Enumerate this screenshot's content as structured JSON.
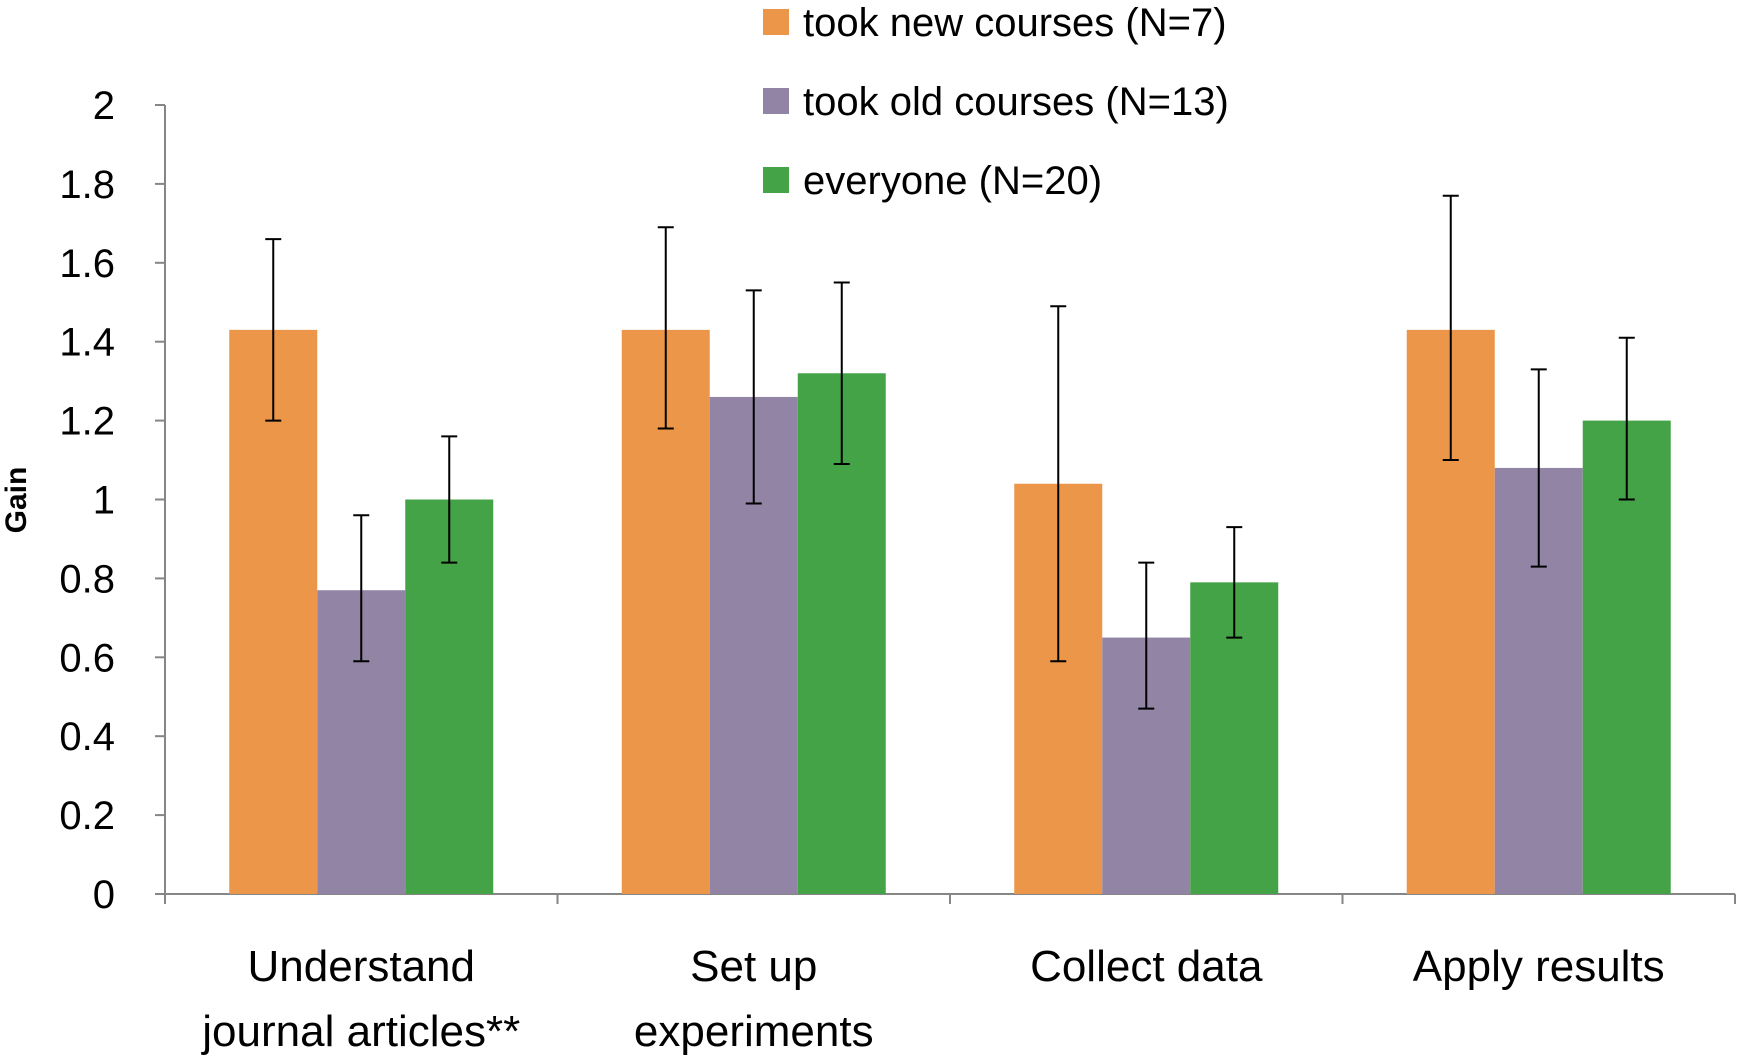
{
  "chart_data": {
    "type": "bar",
    "title": "",
    "xlabel": "",
    "ylabel": "Gain",
    "ylim": [
      0,
      2
    ],
    "yticks": [
      "0",
      "0.2",
      "0.4",
      "0.6",
      "0.8",
      "1",
      "1.2",
      "1.4",
      "1.6",
      "1.8",
      "2"
    ],
    "grid": false,
    "legend_position": "top",
    "categories": [
      [
        "Understand",
        "journal articles**"
      ],
      [
        "Set up",
        "experiments"
      ],
      [
        "Collect data"
      ],
      [
        "Apply results"
      ]
    ],
    "series": [
      {
        "name": "took new courses (N=7)",
        "color": "#EB9648",
        "values": [
          1.43,
          1.43,
          1.04,
          1.43
        ],
        "error_low": [
          1.2,
          1.18,
          0.59,
          1.1
        ],
        "error_high": [
          1.66,
          1.69,
          1.49,
          1.77
        ]
      },
      {
        "name": "took old courses (N=13)",
        "color": "#9184A4",
        "values": [
          0.77,
          1.26,
          0.65,
          1.08
        ],
        "error_low": [
          0.59,
          0.99,
          0.47,
          0.83
        ],
        "error_high": [
          0.96,
          1.53,
          0.84,
          1.33
        ]
      },
      {
        "name": "everyone (N=20)",
        "color": "#45A347",
        "values": [
          1.0,
          1.32,
          0.79,
          1.2
        ],
        "error_low": [
          0.84,
          1.09,
          0.65,
          1.0
        ],
        "error_high": [
          1.16,
          1.55,
          0.93,
          1.41
        ]
      }
    ]
  }
}
